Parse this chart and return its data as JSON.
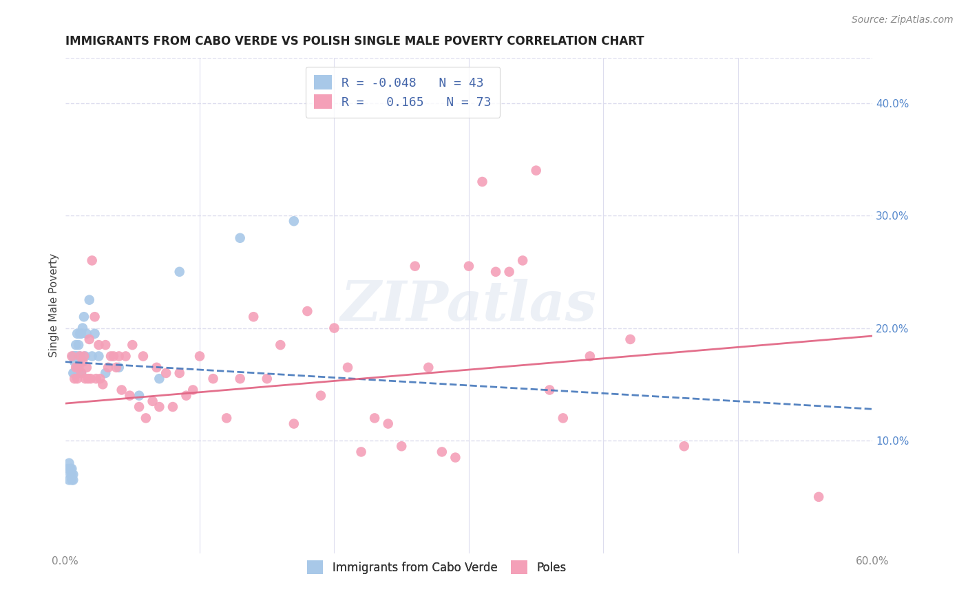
{
  "title": "IMMIGRANTS FROM CABO VERDE VS POLISH SINGLE MALE POVERTY CORRELATION CHART",
  "source": "Source: ZipAtlas.com",
  "ylabel": "Single Male Poverty",
  "xlim": [
    0.0,
    0.6
  ],
  "ylim": [
    0.0,
    0.44
  ],
  "yticks_right": [
    0.1,
    0.2,
    0.3,
    0.4
  ],
  "ytick_right_labels": [
    "10.0%",
    "20.0%",
    "30.0%",
    "40.0%"
  ],
  "legend_R1": "-0.048",
  "legend_N1": "43",
  "legend_R2": "0.165",
  "legend_N2": "73",
  "cabo_verde_color": "#a8c8e8",
  "poles_color": "#f4a0b8",
  "cabo_verde_line_color": "#4477bb",
  "poles_line_color": "#e06080",
  "background_color": "#ffffff",
  "grid_color": "#ddddee",
  "watermark": "ZIPatlas",
  "cabo_verde_x": [
    0.002,
    0.003,
    0.003,
    0.004,
    0.004,
    0.005,
    0.005,
    0.005,
    0.006,
    0.006,
    0.006,
    0.006,
    0.007,
    0.007,
    0.007,
    0.008,
    0.008,
    0.008,
    0.009,
    0.009,
    0.009,
    0.01,
    0.01,
    0.01,
    0.011,
    0.011,
    0.012,
    0.012,
    0.013,
    0.014,
    0.015,
    0.016,
    0.018,
    0.02,
    0.022,
    0.025,
    0.03,
    0.04,
    0.055,
    0.07,
    0.085,
    0.13,
    0.17
  ],
  "cabo_verde_y": [
    0.075,
    0.065,
    0.08,
    0.07,
    0.075,
    0.065,
    0.07,
    0.075,
    0.065,
    0.07,
    0.16,
    0.175,
    0.16,
    0.17,
    0.175,
    0.16,
    0.175,
    0.185,
    0.165,
    0.175,
    0.195,
    0.16,
    0.17,
    0.185,
    0.175,
    0.195,
    0.16,
    0.195,
    0.2,
    0.21,
    0.175,
    0.195,
    0.225,
    0.175,
    0.195,
    0.175,
    0.16,
    0.165,
    0.14,
    0.155,
    0.25,
    0.28,
    0.295
  ],
  "poles_x": [
    0.005,
    0.007,
    0.008,
    0.009,
    0.01,
    0.011,
    0.012,
    0.013,
    0.014,
    0.015,
    0.016,
    0.017,
    0.018,
    0.019,
    0.02,
    0.022,
    0.023,
    0.025,
    0.026,
    0.028,
    0.03,
    0.032,
    0.034,
    0.036,
    0.038,
    0.04,
    0.042,
    0.045,
    0.048,
    0.05,
    0.055,
    0.058,
    0.06,
    0.065,
    0.068,
    0.07,
    0.075,
    0.08,
    0.085,
    0.09,
    0.095,
    0.1,
    0.11,
    0.12,
    0.13,
    0.14,
    0.15,
    0.16,
    0.17,
    0.18,
    0.19,
    0.2,
    0.21,
    0.22,
    0.23,
    0.24,
    0.25,
    0.26,
    0.27,
    0.28,
    0.29,
    0.3,
    0.31,
    0.32,
    0.33,
    0.34,
    0.35,
    0.36,
    0.37,
    0.39,
    0.42,
    0.46,
    0.56
  ],
  "poles_y": [
    0.175,
    0.155,
    0.165,
    0.155,
    0.165,
    0.175,
    0.16,
    0.17,
    0.175,
    0.155,
    0.165,
    0.155,
    0.19,
    0.155,
    0.26,
    0.21,
    0.155,
    0.185,
    0.155,
    0.15,
    0.185,
    0.165,
    0.175,
    0.175,
    0.165,
    0.175,
    0.145,
    0.175,
    0.14,
    0.185,
    0.13,
    0.175,
    0.12,
    0.135,
    0.165,
    0.13,
    0.16,
    0.13,
    0.16,
    0.14,
    0.145,
    0.175,
    0.155,
    0.12,
    0.155,
    0.21,
    0.155,
    0.185,
    0.115,
    0.215,
    0.14,
    0.2,
    0.165,
    0.09,
    0.12,
    0.115,
    0.095,
    0.255,
    0.165,
    0.09,
    0.085,
    0.255,
    0.33,
    0.25,
    0.25,
    0.26,
    0.34,
    0.145,
    0.12,
    0.175,
    0.19,
    0.095,
    0.05
  ]
}
